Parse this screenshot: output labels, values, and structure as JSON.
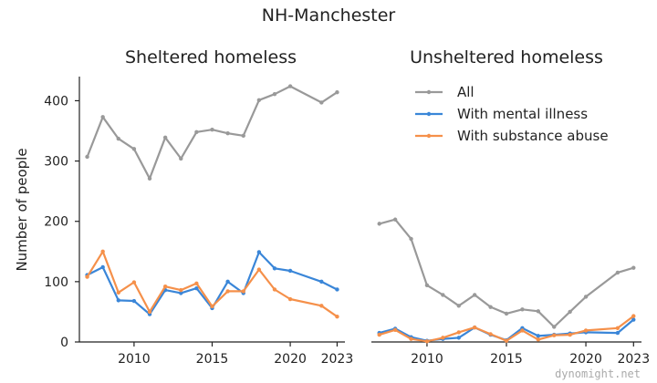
{
  "chart_data": {
    "type": "line",
    "suptitle": "NH-Manchester",
    "ylabel": "Number of people",
    "legend": [
      "All",
      "With mental illness",
      "With substance abuse"
    ],
    "colors": {
      "All": "#999999",
      "With mental illness": "#3a86d8",
      "With substance abuse": "#f5904a"
    },
    "xticks": [
      2010,
      2015,
      2020,
      2023
    ],
    "yticks": [
      0,
      100,
      200,
      300,
      400
    ],
    "xlim": [
      2006.5,
      2023.5
    ],
    "ylim": [
      0,
      440
    ],
    "panels": [
      {
        "title": "Sheltered homeless",
        "x": [
          2007,
          2008,
          2009,
          2010,
          2011,
          2012,
          2013,
          2014,
          2015,
          2016,
          2017,
          2018,
          2019,
          2020,
          2022,
          2023
        ],
        "series": [
          {
            "name": "All",
            "values": [
              307,
              373,
              337,
              320,
              271,
              339,
              304,
              348,
              352,
              346,
              342,
              401,
              411,
              424,
              397,
              414
            ]
          },
          {
            "name": "With mental illness",
            "values": [
              111,
              124,
              69,
              68,
              46,
              86,
              81,
              89,
              56,
              100,
              81,
              149,
              122,
              118,
              100,
              87
            ]
          },
          {
            "name": "With substance abuse",
            "values": [
              108,
              150,
              82,
              99,
              50,
              92,
              86,
              97,
              59,
              84,
              84,
              120,
              87,
              71,
              60,
              42
            ]
          }
        ]
      },
      {
        "title": "Unsheltered homeless",
        "x": [
          2007,
          2008,
          2009,
          2010,
          2011,
          2012,
          2013,
          2014,
          2015,
          2016,
          2017,
          2018,
          2019,
          2020,
          2022,
          2023
        ],
        "series": [
          {
            "name": "All",
            "values": [
              196,
              203,
              171,
              94,
              78,
              60,
              78,
              58,
              47,
              54,
              51,
              25,
              50,
              75,
              115,
              123
            ]
          },
          {
            "name": "With mental illness",
            "values": [
              15,
              22,
              8,
              2,
              5,
              7,
              24,
              12,
              3,
              23,
              10,
              12,
              14,
              16,
              15,
              37
            ]
          },
          {
            "name": "With substance abuse",
            "values": [
              12,
              20,
              5,
              1,
              7,
              16,
              24,
              13,
              2,
              19,
              4,
              11,
              12,
              19,
              23,
              43
            ]
          }
        ]
      }
    ]
  },
  "watermark": "dynomight.net"
}
